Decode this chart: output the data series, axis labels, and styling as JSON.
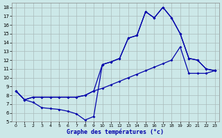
{
  "bg_color": "#cce8e8",
  "grid_color": "#aabbbb",
  "line_color": "#0000aa",
  "xlabel": "Graphe des températures (°c)",
  "xlim": [
    -0.5,
    23.5
  ],
  "ylim": [
    5,
    18.5
  ],
  "yticks": [
    5,
    6,
    7,
    8,
    9,
    10,
    11,
    12,
    13,
    14,
    15,
    16,
    17,
    18
  ],
  "xticks": [
    0,
    1,
    2,
    3,
    4,
    5,
    6,
    7,
    8,
    9,
    10,
    11,
    12,
    13,
    14,
    15,
    16,
    17,
    18,
    19,
    20,
    21,
    22,
    23
  ],
  "line1_x": [
    0,
    1,
    2,
    3,
    4,
    5,
    6,
    7,
    8,
    9,
    10,
    11,
    12,
    13,
    14,
    15,
    16,
    17,
    18,
    19,
    20,
    21,
    22,
    23
  ],
  "line1_y": [
    8.5,
    7.5,
    7.2,
    6.6,
    6.5,
    6.4,
    6.2,
    5.9,
    5.2,
    5.6,
    11.5,
    11.8,
    12.2,
    14.5,
    14.8,
    17.5,
    16.8,
    18.0,
    16.8,
    15.0,
    12.2,
    12.0,
    11.0,
    10.8
  ],
  "line2_x": [
    0,
    1,
    2,
    3,
    4,
    5,
    6,
    7,
    8,
    9,
    10,
    11,
    12,
    13,
    14,
    15,
    16,
    17,
    18,
    19,
    20,
    21,
    22,
    23
  ],
  "line2_y": [
    8.5,
    7.5,
    7.8,
    7.8,
    7.8,
    7.8,
    7.8,
    7.8,
    8.0,
    8.5,
    11.5,
    11.8,
    12.2,
    14.5,
    14.8,
    17.5,
    16.8,
    18.0,
    16.8,
    15.0,
    12.2,
    12.0,
    11.0,
    10.8
  ],
  "line3_x": [
    0,
    1,
    2,
    3,
    4,
    5,
    6,
    7,
    8,
    9,
    10,
    11,
    12,
    13,
    14,
    15,
    16,
    17,
    18,
    19,
    20,
    21,
    22,
    23
  ],
  "line3_y": [
    8.5,
    7.5,
    7.8,
    7.8,
    7.8,
    7.8,
    7.8,
    7.8,
    8.0,
    8.5,
    8.8,
    9.2,
    9.6,
    10.0,
    10.4,
    10.8,
    11.2,
    11.6,
    12.0,
    13.5,
    10.5,
    10.5,
    10.5,
    10.8
  ]
}
